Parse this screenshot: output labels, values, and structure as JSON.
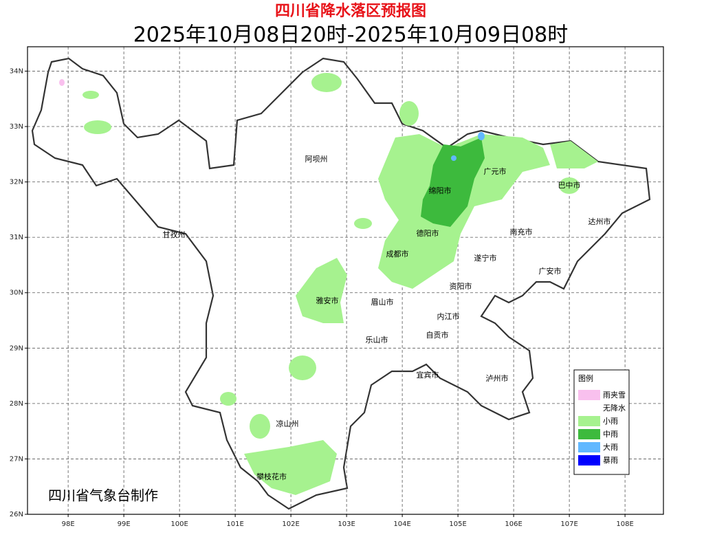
{
  "title": "四川省降水落区预报图",
  "subtitle": "2025年10月08日20时-2025年10月09日08时",
  "credit": "四川省气象台制作",
  "cities": [
    "阿坝州",
    "广元市",
    "绵阳市",
    "巴中市",
    "达州市",
    "甘孜州",
    "德阳市",
    "南充市",
    "成都市",
    "遂宁市",
    "广安市",
    "资阳市",
    "雅安市",
    "眉山市",
    "内江市",
    "自贡市",
    "乐山市",
    "宜宾市",
    "泸州市",
    "凉山州",
    "攀枝花市"
  ],
  "legend": {
    "title": "图例",
    "items": [
      {
        "label": "雨夹雪",
        "color": "#f9c0ee"
      },
      {
        "label": "无降水",
        "color": "#ffffff"
      },
      {
        "label": "小雨",
        "color": "#a6f28f"
      },
      {
        "label": "中雨",
        "color": "#3dba3d"
      },
      {
        "label": "大雨",
        "color": "#61b8ff"
      },
      {
        "label": "暴雨",
        "color": "#0000fe"
      }
    ]
  },
  "map_data": {
    "xlim": [
      97.27,
      108.69
    ],
    "ylim": [
      26,
      34.44
    ],
    "xticks": [
      {
        "value": 98,
        "label": "98E"
      },
      {
        "value": 99,
        "label": "99E"
      },
      {
        "value": 100,
        "label": "100E"
      },
      {
        "value": 101,
        "label": "101E"
      },
      {
        "value": 102,
        "label": "102E"
      },
      {
        "value": 103,
        "label": "103E"
      },
      {
        "value": 104,
        "label": "104E"
      },
      {
        "value": 105,
        "label": "105E"
      },
      {
        "value": 106,
        "label": "106E"
      },
      {
        "value": 107,
        "label": "107E"
      },
      {
        "value": 108,
        "label": "108E"
      }
    ],
    "yticks": [
      {
        "value": 26,
        "label": "26N"
      },
      {
        "value": 27,
        "label": "27N"
      },
      {
        "value": 28,
        "label": "28N"
      },
      {
        "value": 29,
        "label": "29N"
      },
      {
        "value": 30,
        "label": "30N"
      },
      {
        "value": 31,
        "label": "31N"
      },
      {
        "value": 32,
        "label": "32N"
      },
      {
        "value": 33,
        "label": "33N"
      },
      {
        "value": 34,
        "label": "34N"
      }
    ]
  }
}
